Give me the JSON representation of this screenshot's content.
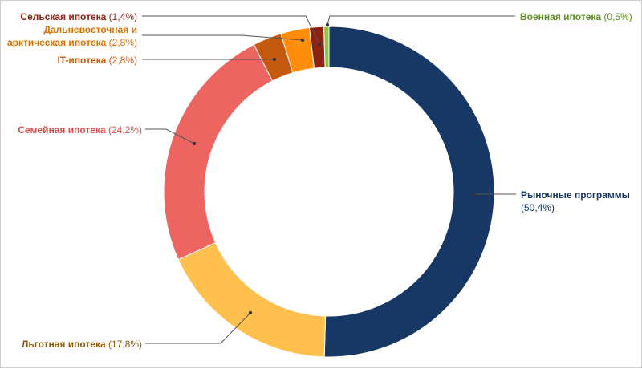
{
  "chart_data": {
    "type": "pie",
    "variant": "donut",
    "title": "",
    "legend": "none (callout labels)",
    "slices": [
      {
        "name": "Рыночные программы",
        "value_text": "(50,4%)",
        "value": 50.4,
        "color": "#173764",
        "label_color": "#173764"
      },
      {
        "name": "Льготная ипотека",
        "value_text": "(17,8%)",
        "value": 17.8,
        "color": "#FFC04D",
        "label_color": "#8C5A0A"
      },
      {
        "name": "Семейная ипотека",
        "value_text": "(24,2%)",
        "value": 24.2,
        "color": "#EC6561",
        "label_color": "#D6504B"
      },
      {
        "name": "IT-ипотека",
        "value_text": "(2,8%)",
        "value": 2.8,
        "color": "#C55A0E",
        "label_color": "#C55A0E"
      },
      {
        "name": "Дальневосточная и арктическая ипотека",
        "name_lines": [
          "Дальневосточная и",
          "арктическая ипотека"
        ],
        "value_text": "(2,8%)",
        "value": 2.8,
        "color": "#FF8C0A",
        "label_color": "#D97100"
      },
      {
        "name": "Сельская ипотека",
        "value_text": "(1,4%)",
        "value": 1.4,
        "color": "#8B2413",
        "label_color": "#8B2413"
      },
      {
        "name": "Военная ипотека",
        "value_text": "(0,5%)",
        "value": 0.5,
        "color": "#8DC63F",
        "label_color": "#5E8F23"
      }
    ]
  }
}
